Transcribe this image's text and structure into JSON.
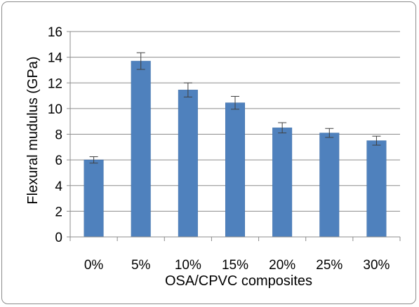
{
  "chart_data": {
    "type": "bar",
    "title": "",
    "xlabel": "OSA/CPVC composites",
    "ylabel": "Flexural mudulus (GPa)",
    "categories": [
      "0%",
      "5%",
      "10%",
      "15%",
      "20%",
      "25%",
      "30%"
    ],
    "values": [
      6.0,
      13.7,
      11.45,
      10.45,
      8.5,
      8.1,
      7.5
    ],
    "error_bars": [
      0.25,
      0.65,
      0.55,
      0.5,
      0.4,
      0.35,
      0.35
    ],
    "ylim": [
      0,
      16
    ],
    "yticks": [
      0,
      2,
      4,
      6,
      8,
      10,
      12,
      14,
      16
    ],
    "grid": true,
    "legend": "none",
    "bar_color": "#4f81bd",
    "bar_edge_color": "#3f6fa8",
    "grid_color": "#8c8c8c",
    "errorbar_color": "#404040"
  }
}
